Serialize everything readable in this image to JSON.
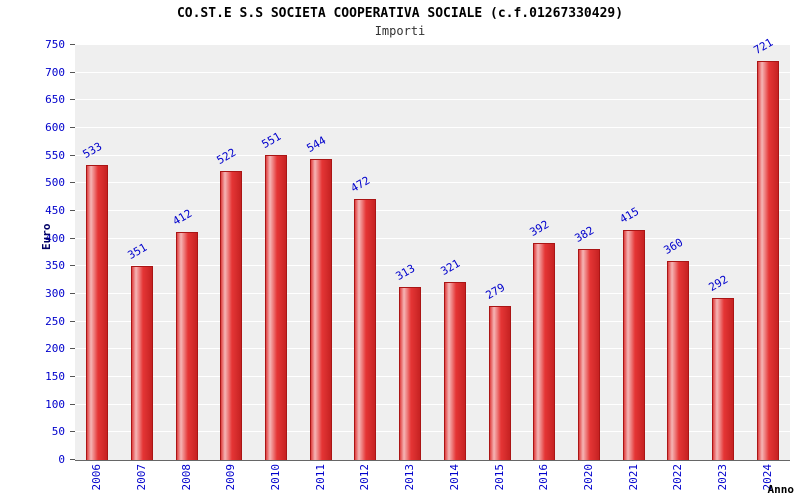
{
  "chart_data": {
    "type": "bar",
    "title": "CO.ST.E S.S SOCIETA COOPERATIVA SOCIALE (c.f.01267330429)",
    "subtitle": "Importi",
    "xlabel": "Anno",
    "ylabel": "Euro",
    "categories": [
      "2006",
      "2007",
      "2008",
      "2009",
      "2010",
      "2011",
      "2012",
      "2013",
      "2014",
      "2015",
      "2016",
      "2020",
      "2021",
      "2022",
      "2023",
      "2024"
    ],
    "values": [
      533,
      351,
      412,
      522,
      551,
      544,
      472,
      313,
      321,
      279,
      392,
      382,
      415,
      360,
      292,
      721
    ],
    "ylim": [
      0,
      750
    ],
    "ytick_step": 50,
    "grid": true,
    "legend": "none",
    "colors": {
      "bar_fill": "#e03a3a",
      "bar_edge": "#aa1515",
      "value_label": "#0000cc",
      "tick_label": "#0000cc",
      "plot_background": "#efefef",
      "gridline": "#ffffff",
      "title": "#000000",
      "ylabel": "#000066"
    }
  }
}
